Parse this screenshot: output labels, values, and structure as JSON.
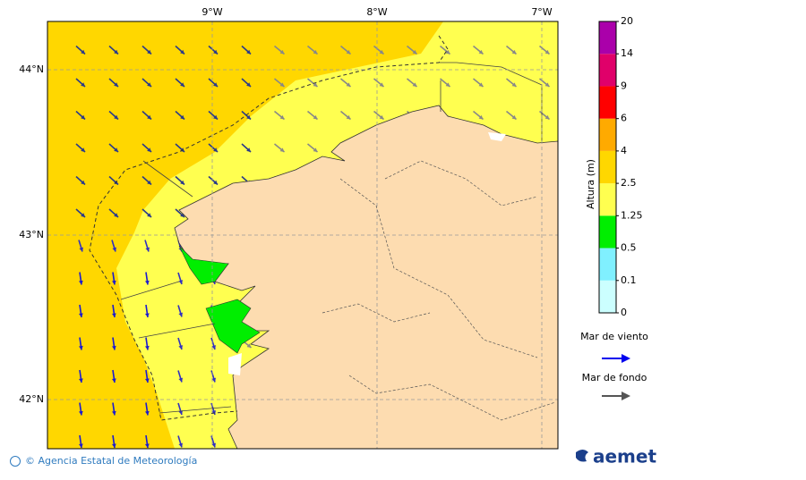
{
  "map": {
    "lon_labels": [
      "9°W",
      "8°W",
      "7°W"
    ],
    "lat_labels": [
      "44°N",
      "43°N",
      "42°N"
    ]
  },
  "legend": {
    "title": "Altura (m)",
    "levels": [
      "0",
      "0.1",
      "0.5",
      "1.25",
      "2.5",
      "4",
      "6",
      "9",
      "14",
      "20"
    ],
    "colors": [
      "#ccffff",
      "#80f0ff",
      "#00ee00",
      "#ffff50",
      "#ffd700",
      "#ffaa00",
      "#ff0000",
      "#e0006a",
      "#aa00aa"
    ],
    "wind_sea": "Mar de viento",
    "swell": "Mar de fondo"
  },
  "footer": {
    "credit": "© Agencia Estatal de Meteorología",
    "logo": "aemet"
  }
}
